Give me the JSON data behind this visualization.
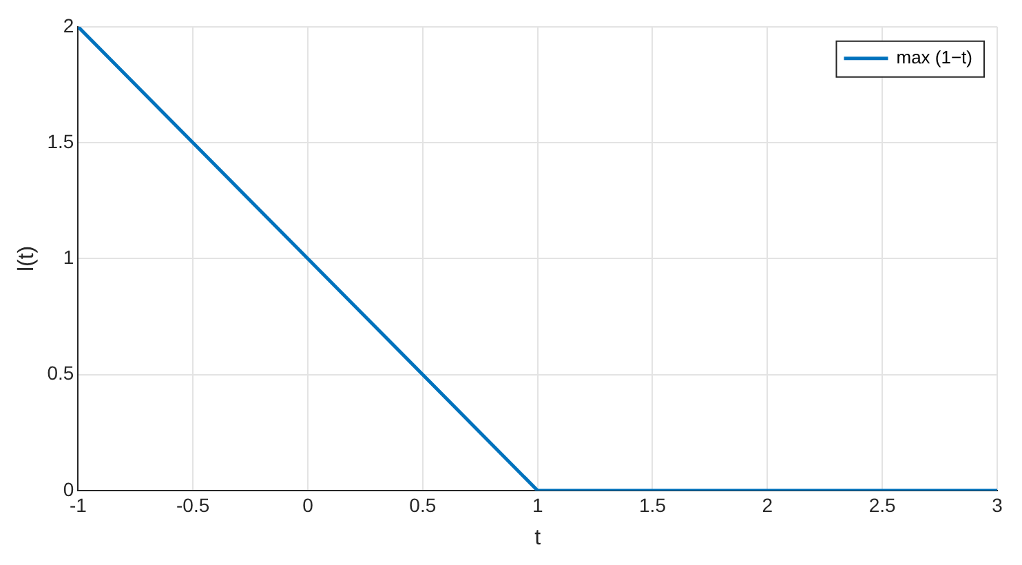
{
  "chart_data": {
    "type": "line",
    "xlabel": "t",
    "ylabel": "l(t)",
    "x": [
      -1,
      1,
      3
    ],
    "series": [
      {
        "name": "max (1−t)",
        "color": "#0072bd",
        "values": [
          2,
          0,
          0
        ]
      }
    ],
    "xlim": [
      -1,
      3
    ],
    "xticks": [
      -1,
      -0.5,
      0,
      0.5,
      1,
      1.5,
      2,
      2.5,
      3
    ],
    "ylim": [
      0,
      2
    ],
    "yticks": [
      0,
      0.5,
      1,
      1.5,
      2
    ],
    "grid": true,
    "legend": "top right",
    "marker": "none",
    "line_style": "solid"
  }
}
